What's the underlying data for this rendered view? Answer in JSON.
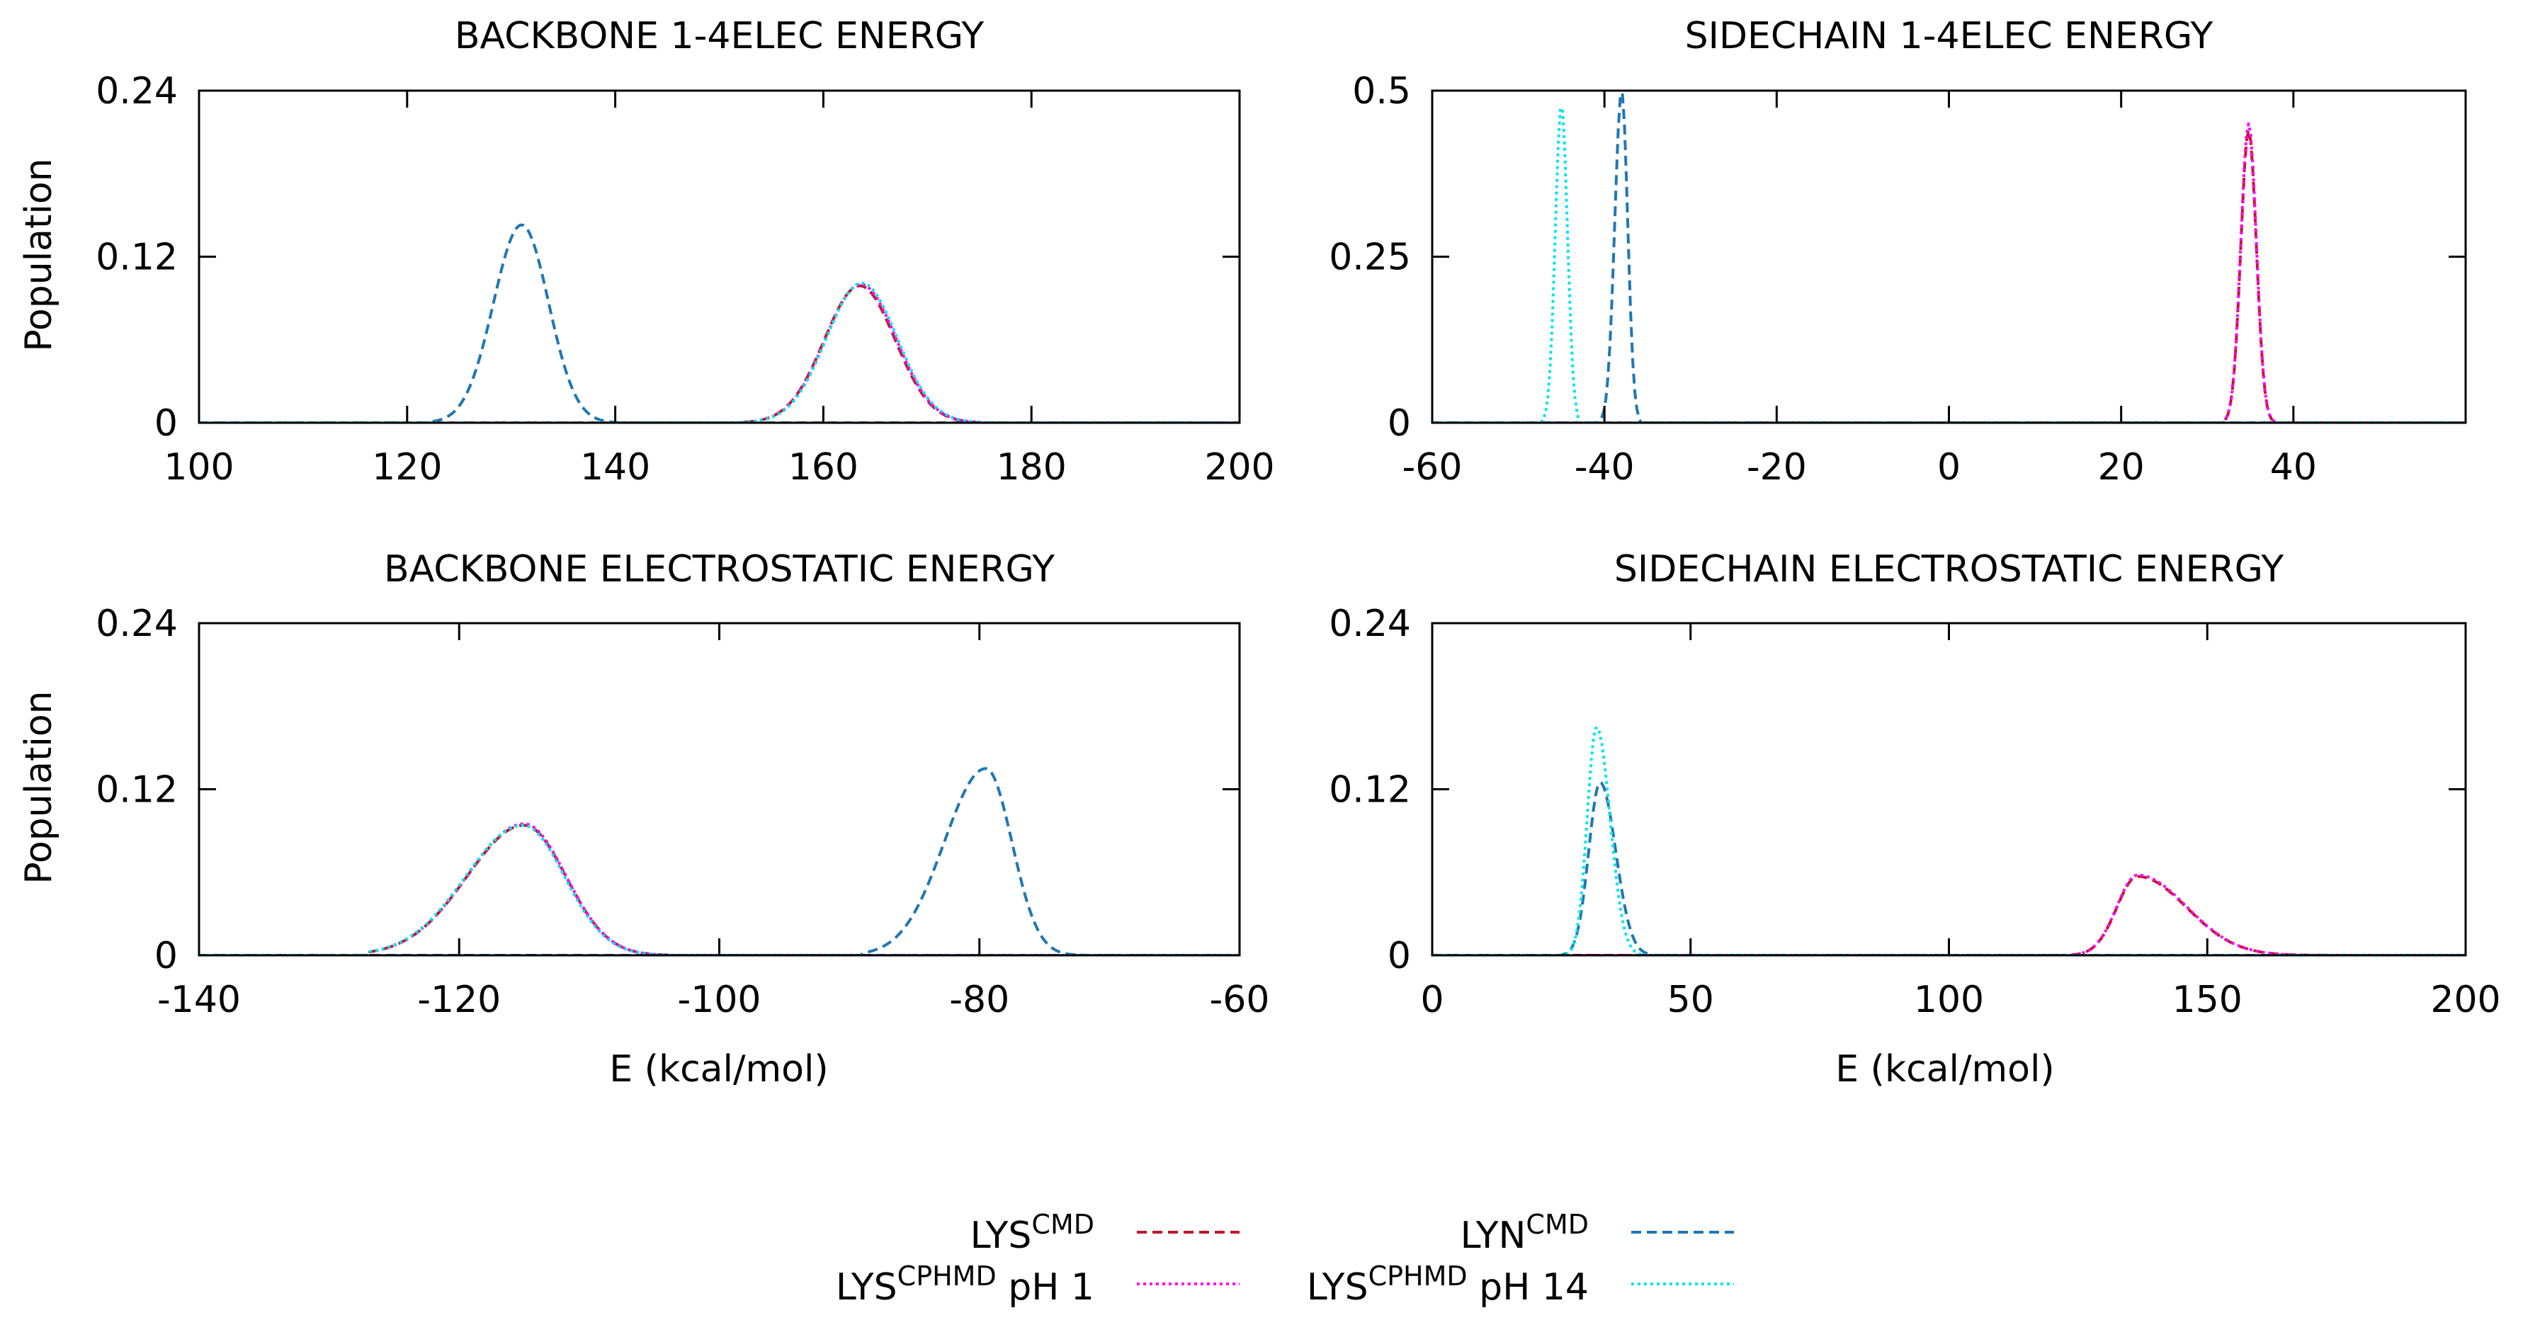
{
  "figure": {
    "xlabel": "E (kcal/mol)",
    "ylabel": "Population"
  },
  "legend": {
    "placement": "bottom-center",
    "entries": [
      {
        "series": "lys_cmd",
        "base": "LYS",
        "sup": "CMD",
        "suffix": "",
        "color": "#c0182a",
        "dash": "dashed"
      },
      {
        "series": "lyn_cmd",
        "base": "LYN",
        "sup": "CMD",
        "suffix": "",
        "color": "#1f77b4",
        "dash": "dashed"
      },
      {
        "series": "lys_ph1",
        "base": "LYS",
        "sup": "CPHMD",
        "suffix": " pH 1",
        "color": "#ff00ff",
        "dash": "dotted"
      },
      {
        "series": "lys_ph14",
        "base": "LYS",
        "sup": "CPHMD",
        "suffix": " pH 14",
        "color": "#00e5ee",
        "dash": "dotted"
      }
    ]
  },
  "chart_data": [
    {
      "type": "line",
      "title": "BACKBONE 1-4ELEC ENERGY",
      "xlabel": "",
      "ylabel": "Population",
      "xlim": [
        100,
        200
      ],
      "ylim": [
        0,
        0.24
      ],
      "xticks": [
        100,
        120,
        140,
        160,
        180,
        200
      ],
      "xtick_labels": [
        "100",
        "120",
        "140",
        "160",
        "180",
        "200"
      ],
      "yticks": [
        0,
        0.12,
        0.24
      ],
      "ytick_labels": [
        "0",
        "0.12",
        "0.24"
      ],
      "series": [
        {
          "name": "LYS CMD",
          "peaks": [
            {
              "center": 163.5,
              "height": 0.099,
              "sigma_left": 3.4,
              "sigma_right": 3.4,
              "min": 152,
              "max": 175
            }
          ]
        },
        {
          "name": "LYN CMD",
          "peaks": [
            {
              "center": 131.0,
              "height": 0.143,
              "sigma_left": 2.7,
              "sigma_right": 2.6,
              "min": 122,
              "max": 140
            }
          ]
        },
        {
          "name": "LYS CPHMD pH 1",
          "peaks": [
            {
              "center": 163.6,
              "height": 0.1,
              "sigma_left": 3.4,
              "sigma_right": 3.4,
              "min": 152,
              "max": 175
            }
          ]
        },
        {
          "name": "LYS CPHMD pH 14",
          "peaks": [
            {
              "center": 163.7,
              "height": 0.101,
              "sigma_left": 3.4,
              "sigma_right": 3.4,
              "min": 152,
              "max": 175
            }
          ]
        }
      ]
    },
    {
      "type": "line",
      "title": "SIDECHAIN 1-4ELEC ENERGY",
      "xlabel": "",
      "ylabel": "",
      "xlim": [
        -60,
        60
      ],
      "ylim": [
        0,
        0.5
      ],
      "xticks": [
        -60,
        -40,
        -20,
        0,
        20,
        40
      ],
      "xtick_labels": [
        "-60",
        "-40",
        "-20",
        "0",
        "20",
        "40"
      ],
      "yticks": [
        0,
        0.25,
        0.5
      ],
      "ytick_labels": [
        "0",
        "0.25",
        "0.5"
      ],
      "series": [
        {
          "name": "LYS CMD",
          "peaks": [
            {
              "center": 34.8,
              "height": 0.44,
              "sigma_left": 0.9,
              "sigma_right": 0.9,
              "min": 32,
              "max": 38
            }
          ]
        },
        {
          "name": "LYN CMD",
          "peaks": [
            {
              "center": -38.0,
              "height": 0.5,
              "sigma_left": 0.8,
              "sigma_right": 0.7,
              "min": -41,
              "max": -36
            }
          ]
        },
        {
          "name": "LYS CPHMD pH 1",
          "peaks": [
            {
              "center": 34.8,
              "height": 0.45,
              "sigma_left": 0.9,
              "sigma_right": 0.9,
              "min": 32,
              "max": 38
            }
          ]
        },
        {
          "name": "LYS CPHMD pH 14",
          "peaks": [
            {
              "center": -45.0,
              "height": 0.48,
              "sigma_left": 0.7,
              "sigma_right": 0.7,
              "min": -48,
              "max": -43
            }
          ]
        }
      ]
    },
    {
      "type": "line",
      "title": "BACKBONE ELECTROSTATIC ENERGY",
      "xlabel": "E (kcal/mol)",
      "ylabel": "Population",
      "xlim": [
        -140,
        -60
      ],
      "ylim": [
        0,
        0.24
      ],
      "xticks": [
        -140,
        -120,
        -100,
        -80,
        -60
      ],
      "xtick_labels": [
        "-140",
        "-120",
        "-100",
        "-80",
        "-60"
      ],
      "yticks": [
        0,
        0.12,
        0.24
      ],
      "ytick_labels": [
        "0",
        "0.12",
        "0.24"
      ],
      "series": [
        {
          "name": "LYS CMD",
          "peaks": [
            {
              "center": -115.0,
              "height": 0.094,
              "sigma_left": 4.4,
              "sigma_right": 3.2,
              "min": -127,
              "max": -104
            }
          ]
        },
        {
          "name": "LYN CMD",
          "peaks": [
            {
              "center": -79.5,
              "height": 0.135,
              "sigma_left": 3.2,
              "sigma_right": 2.0,
              "min": -89,
              "max": -72
            }
          ]
        },
        {
          "name": "LYS CPHMD pH 1",
          "peaks": [
            {
              "center": -115.0,
              "height": 0.095,
              "sigma_left": 4.4,
              "sigma_right": 3.2,
              "min": -127,
              "max": -104
            }
          ]
        },
        {
          "name": "LYS CPHMD pH 14",
          "peaks": [
            {
              "center": -115.1,
              "height": 0.094,
              "sigma_left": 4.4,
              "sigma_right": 3.2,
              "min": -127,
              "max": -104
            }
          ]
        }
      ]
    },
    {
      "type": "line",
      "title": "SIDECHAIN ELECTROSTATIC ENERGY",
      "xlabel": "E (kcal/mol)",
      "ylabel": "",
      "xlim": [
        0,
        200
      ],
      "ylim": [
        0,
        0.24
      ],
      "xticks": [
        0,
        50,
        100,
        150,
        200
      ],
      "xtick_labels": [
        "0",
        "50",
        "100",
        "150",
        "200"
      ],
      "yticks": [
        0,
        0.12,
        0.24
      ],
      "ytick_labels": [
        "0",
        "0.12",
        "0.24"
      ],
      "series": [
        {
          "name": "LYS CMD",
          "peaks": [
            {
              "center": 136.5,
              "height": 0.057,
              "sigma_left": 4.0,
              "sigma_right": 9.5,
              "min": 124,
              "max": 175
            }
          ]
        },
        {
          "name": "LYN CMD",
          "peaks": [
            {
              "center": 32.5,
              "height": 0.125,
              "sigma_left": 2.2,
              "sigma_right": 3.0,
              "min": 25,
              "max": 42
            }
          ]
        },
        {
          "name": "LYS CPHMD pH 1",
          "peaks": [
            {
              "center": 136.5,
              "height": 0.058,
              "sigma_left": 4.0,
              "sigma_right": 9.5,
              "min": 124,
              "max": 175
            }
          ]
        },
        {
          "name": "LYS CPHMD pH 14",
          "peaks": [
            {
              "center": 31.8,
              "height": 0.165,
              "sigma_left": 1.8,
              "sigma_right": 2.6,
              "min": 25,
              "max": 42
            }
          ]
        }
      ]
    }
  ]
}
